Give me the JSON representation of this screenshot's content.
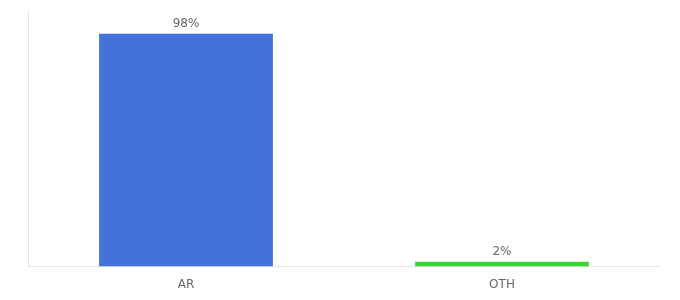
{
  "chart_data": {
    "type": "bar",
    "categories": [
      "AR",
      "OTH"
    ],
    "values": [
      98,
      2
    ],
    "value_labels": [
      "98%",
      "2%"
    ],
    "colors": [
      "#4472db",
      "#36d436"
    ],
    "ylim": [
      0,
      108
    ],
    "yticks": [],
    "grid": false,
    "data_labels": true,
    "tick_labels": "x"
  }
}
